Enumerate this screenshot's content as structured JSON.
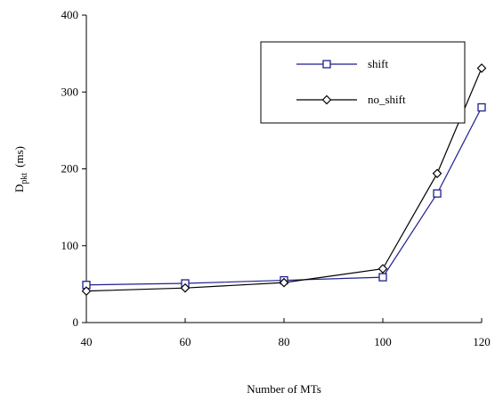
{
  "chart_data": {
    "type": "line",
    "x_label": "Number of MTs",
    "y_label": {
      "main": "D",
      "sub": "pkt",
      "unit": "(ms)"
    },
    "x": [
      40,
      60,
      80,
      100,
      111,
      120
    ],
    "series": [
      {
        "name": "shift",
        "color": "#1f1f8f",
        "marker": "square",
        "values": [
          49,
          51,
          55,
          59,
          168,
          280
        ]
      },
      {
        "name": "no_shift",
        "color": "#000000",
        "marker": "diamond",
        "values": [
          41,
          45,
          52,
          70,
          194,
          331
        ]
      }
    ],
    "xlim": [
      40,
      120
    ],
    "xticks": [
      40,
      60,
      80,
      100,
      120
    ],
    "ylim": [
      0,
      400
    ],
    "yticks": [
      0,
      100,
      200,
      300,
      400
    ],
    "grid": false,
    "legend": "upper right"
  }
}
